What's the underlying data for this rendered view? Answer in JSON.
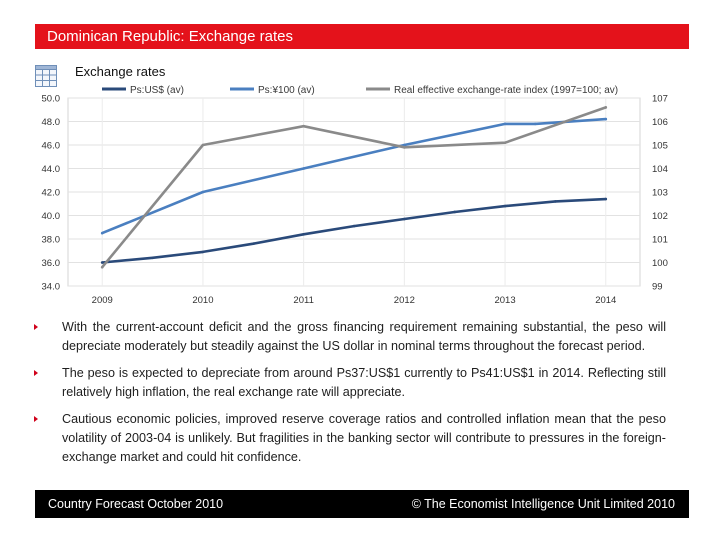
{
  "header": {
    "title": "Dominican Republic: Exchange rates"
  },
  "chart_title": "Exchange rates",
  "chart_data": {
    "type": "line",
    "title": "Exchange rates",
    "x": [
      "2009",
      "2010",
      "2011",
      "2012",
      "2013",
      "2014"
    ],
    "left_axis": {
      "ylim": [
        34.0,
        50.0
      ],
      "ticks": [
        "50.0",
        "48.0",
        "46.0",
        "44.0",
        "42.0",
        "40.0",
        "38.0",
        "36.0",
        "34.0"
      ]
    },
    "right_axis": {
      "ylim": [
        99,
        107
      ],
      "ticks": [
        "107",
        "106",
        "105",
        "104",
        "103",
        "102",
        "101",
        "100",
        "99"
      ]
    },
    "series": [
      {
        "name": "Ps:US$ (av)",
        "axis": "left",
        "color": "#2a4a7a",
        "x": [
          2009,
          2009.5,
          2010,
          2010.5,
          2011,
          2011.5,
          2012,
          2012.5,
          2013,
          2013.5,
          2014
        ],
        "values": [
          36.0,
          36.4,
          36.9,
          37.6,
          38.4,
          39.1,
          39.7,
          40.3,
          40.8,
          41.2,
          41.4
        ]
      },
      {
        "name": "Ps:¥100 (av)",
        "axis": "left",
        "color": "#4a7fc0",
        "x": [
          2009,
          2010,
          2011,
          2012,
          2013,
          2013.3,
          2014
        ],
        "values": [
          38.5,
          42.0,
          44.0,
          46.0,
          47.8,
          47.8,
          48.2
        ]
      },
      {
        "name": "Real effective exchange-rate index (1997=100; av)",
        "axis": "right",
        "color": "#8a8a8a",
        "x": [
          2009,
          2010,
          2011,
          2012,
          2013,
          2014
        ],
        "values": [
          99.8,
          105.0,
          105.8,
          104.9,
          105.1,
          106.6
        ]
      }
    ]
  },
  "bullets": [
    "With the current-account deficit and the gross financing requirement remaining substantial, the peso will depreciate moderately but steadily against the US dollar in nominal terms throughout the forecast period.",
    "The peso is expected to depreciate from around Ps37:US$1 currently to Ps41:US$1 in 2014. Reflecting still relatively high inflation, the real exchange rate will appreciate.",
    "Cautious economic policies, improved reserve coverage ratios and controlled inflation mean that the peso volatility of 2003-04 is unlikely. But fragilities in the banking sector will contribute to pressures in the foreign-exchange market and could hit confidence."
  ],
  "footer": {
    "left": "Country Forecast October 2010",
    "right": "© The Economist Intelligence Unit Limited 2010"
  }
}
